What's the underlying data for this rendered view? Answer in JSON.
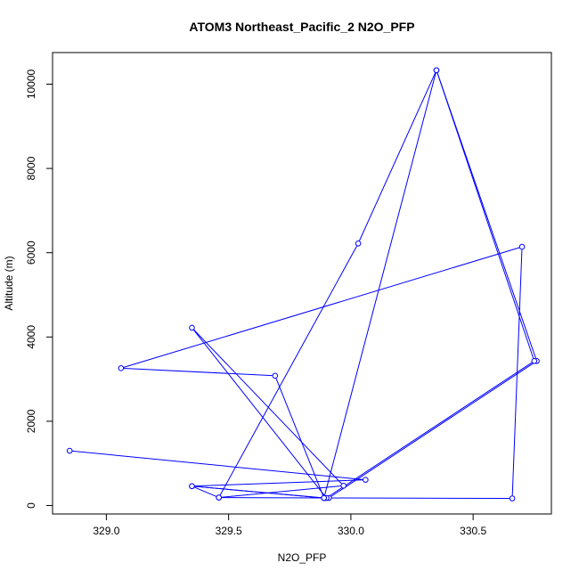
{
  "chart_data": {
    "type": "line",
    "title": "ATOM3 Northeast_Pacific_2 N2O_PFP",
    "xlabel": "N2O_PFP",
    "ylabel": "Altitude (m)",
    "xlim": [
      328.78,
      330.82
    ],
    "ylim": [
      -200,
      10750
    ],
    "x_ticks": [
      329.0,
      329.5,
      330.0,
      330.5
    ],
    "x_tick_labels": [
      "329.0",
      "329.5",
      "330.0",
      "330.5"
    ],
    "y_ticks": [
      0,
      2000,
      4000,
      6000,
      8000,
      10000
    ],
    "y_tick_labels": [
      "0",
      "2000",
      "4000",
      "6000",
      "8000",
      "10000"
    ],
    "grid": false,
    "series": [
      {
        "color": "#0000ff",
        "marker": "open-circle",
        "x": [
          328.85,
          330.06,
          329.35,
          329.89,
          330.35,
          330.76,
          329.91,
          329.46,
          330.03,
          330.35,
          330.75,
          329.9,
          329.35,
          329.97,
          329.46,
          329.35,
          329.89,
          330.66,
          330.7,
          329.06,
          329.69,
          329.89
        ],
        "y": [
          1300,
          610,
          460,
          180,
          10330,
          3430,
          180,
          190,
          6220,
          10330,
          3430,
          180,
          4220,
          470,
          190,
          460,
          180,
          170,
          6140,
          3260,
          3080,
          180
        ]
      }
    ]
  }
}
